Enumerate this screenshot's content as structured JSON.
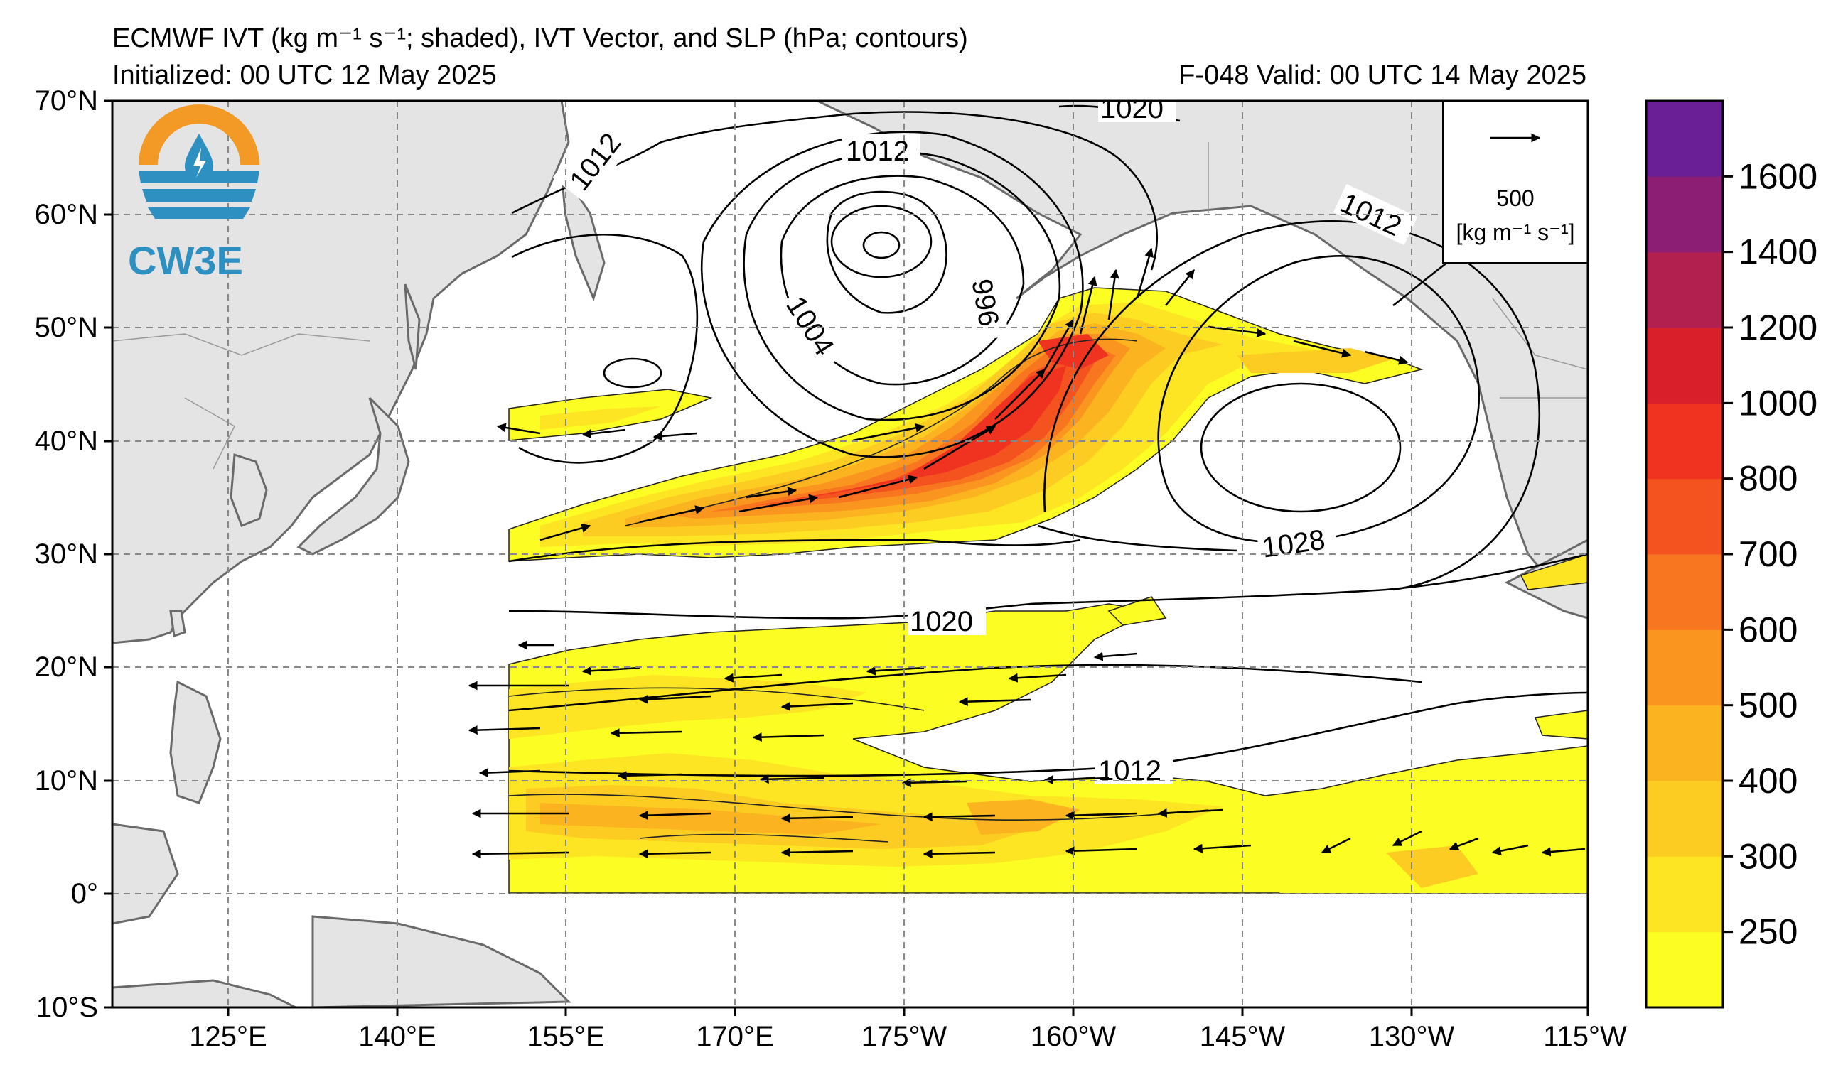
{
  "header": {
    "title": "ECMWF IVT (kg m⁻¹ s⁻¹; shaded), IVT Vector, and SLP (hPa; contours)",
    "initialized": "Initialized: 00 UTC 12 May 2025",
    "valid": "F-048  Valid: 00 UTC 14 May 2025"
  },
  "logo": {
    "text": "CW3E",
    "colors": {
      "sun": "#f39a26",
      "drop": "#2e8fc1",
      "waves": "#2e8fc1"
    }
  },
  "map": {
    "lat_labels": [
      "70°N",
      "60°N",
      "50°N",
      "40°N",
      "30°N",
      "20°N",
      "10°N",
      "0°",
      "10°S"
    ],
    "lon_labels": [
      "125°E",
      "140°E",
      "155°E",
      "170°E",
      "175°W",
      "160°W",
      "145°W",
      "130°W",
      "115°W"
    ],
    "ref_vector": {
      "value": "500",
      "units": "[kg m⁻¹ s⁻¹]"
    },
    "slp_labels": [
      "1020",
      "1012",
      "1012",
      "1012",
      "1004",
      "996",
      "1028",
      "1020",
      "1012"
    ]
  },
  "colorbar": {
    "labels": [
      "1600",
      "1400",
      "1200",
      "1000",
      "800",
      "700",
      "600",
      "500",
      "400",
      "300",
      "250"
    ],
    "colors": [
      "#fbfd23",
      "#fde523",
      "#fdcc22",
      "#fcb320",
      "#fa961f",
      "#f8761f",
      "#f4521f",
      "#f03320",
      "#d91f2a",
      "#b1204e",
      "#8c1e73",
      "#6a1f96"
    ],
    "colors_order": "bottom-to-top"
  }
}
